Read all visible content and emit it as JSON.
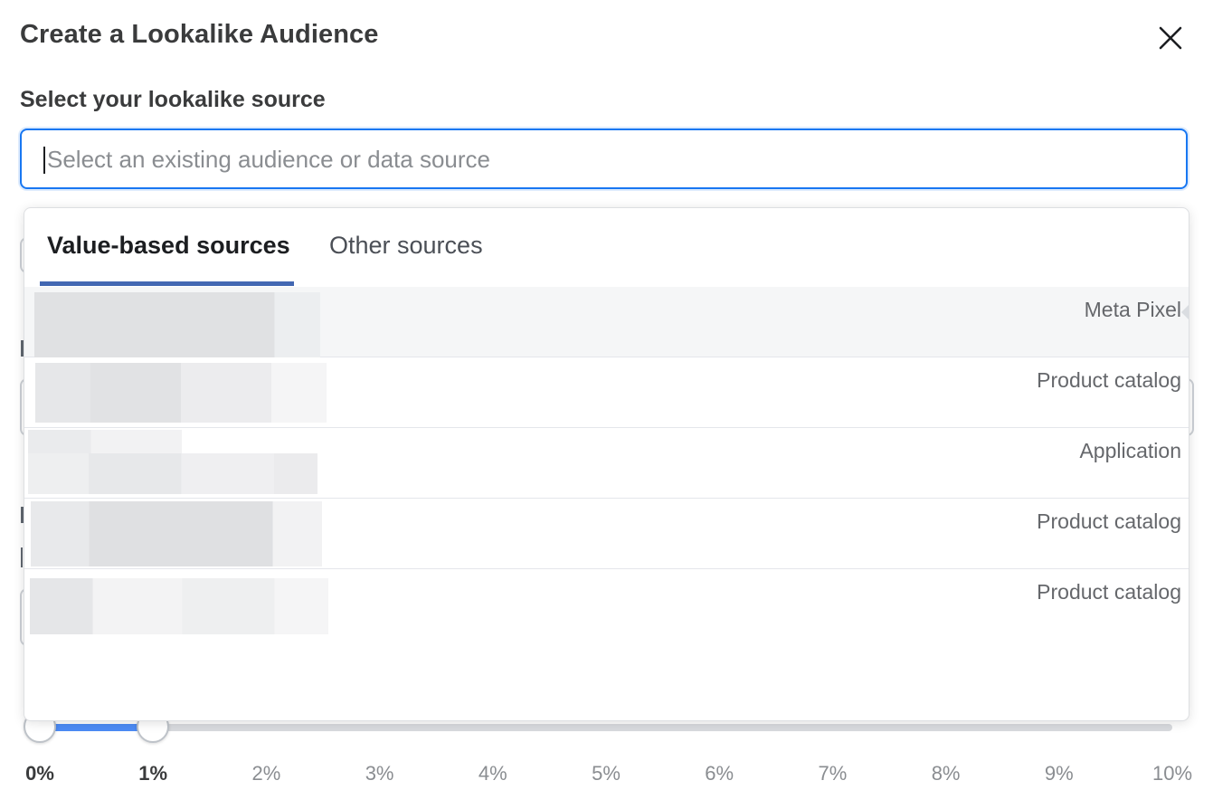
{
  "dialog": {
    "title": "Create a Lookalike Audience"
  },
  "source": {
    "label": "Select your lookalike source",
    "placeholder": "Select an existing audience or data source",
    "value": ""
  },
  "dropdown": {
    "tabs": [
      {
        "label": "Value-based sources",
        "active": true
      },
      {
        "label": "Other sources",
        "active": false
      }
    ],
    "items": [
      {
        "name": "",
        "type": "Meta Pixel",
        "highlighted": true
      },
      {
        "name": "",
        "type": "Product catalog",
        "highlighted": false
      },
      {
        "name": "",
        "type": "Application",
        "highlighted": false
      },
      {
        "name": "",
        "type": "Product catalog",
        "highlighted": false
      },
      {
        "name": "",
        "type": "Product catalog",
        "highlighted": false
      }
    ]
  },
  "audience_size": {
    "range_start_percent": 0,
    "range_end_percent": 1,
    "ticks": [
      "0%",
      "1%",
      "2%",
      "3%",
      "4%",
      "5%",
      "6%",
      "7%",
      "8%",
      "9%",
      "10%"
    ]
  },
  "colors": {
    "accent": "#1877f2",
    "tab_underline": "#4267b2",
    "slider_fill": "#4c8bf5"
  }
}
